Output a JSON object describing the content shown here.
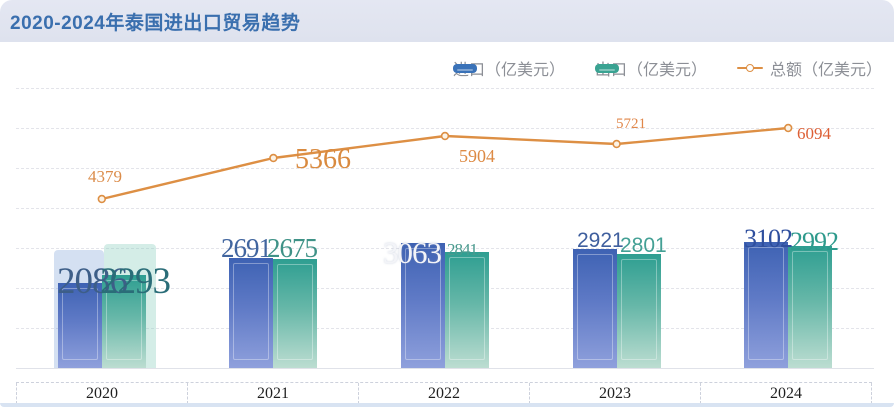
{
  "title": "2020-2024年泰国进出口贸易趋势",
  "legend": {
    "items": [
      {
        "name": "import",
        "label": "进口（亿美元）",
        "color": "#3a72b8",
        "marker": "bar"
      },
      {
        "name": "export",
        "label": "出口（亿美元）",
        "color": "#3aa392",
        "marker": "bar"
      },
      {
        "name": "total",
        "label": "总额（亿美元）",
        "color": "#dd8f44",
        "marker": "line"
      }
    ]
  },
  "chart_data": {
    "type": "combo-bar-line",
    "title": "2020-2024年泰国进出口贸易趋势",
    "categories": [
      "2020",
      "2021",
      "2022",
      "2023",
      "2024"
    ],
    "series": [
      {
        "name": "进口（亿美元）",
        "type": "bar",
        "values": [
          2086,
          2691,
          3063,
          2921,
          3102
        ],
        "labels": [
          "2086",
          "2691",
          "3063",
          "2921",
          "3102"
        ],
        "color": "#3a72b8"
      },
      {
        "name": "出口（亿美元）",
        "type": "bar",
        "values": [
          2293,
          2675,
          2841,
          2801,
          2992
        ],
        "labels": [
          "2293",
          "2675",
          "2841.",
          "2801",
          "2992"
        ],
        "color": "#3aa392"
      },
      {
        "name": "总额（亿美元）",
        "type": "line",
        "values": [
          4379,
          5366,
          5904,
          5721,
          6094
        ],
        "labels": [
          "4379",
          "5366",
          "5904",
          "5721",
          "6094"
        ],
        "color": "#dd8f44"
      }
    ],
    "xlabel": "",
    "ylabel": "",
    "y_axis_labels_visible": false,
    "grid": "dashed-horizontal",
    "legend_position": "top-right"
  },
  "colors": {
    "title_text": "#3a6fae",
    "title_bar_bg": "#e0e4f0",
    "import_bar_top": "#3e62b3",
    "import_bar_bottom": "#8fa0dc",
    "export_bar_top": "#2e9e91",
    "export_bar_bottom": "#bcddd1",
    "total_line": "#dd8f44",
    "legend_text": "#8c8f96",
    "bottom_strip": "#d8e3f2"
  }
}
